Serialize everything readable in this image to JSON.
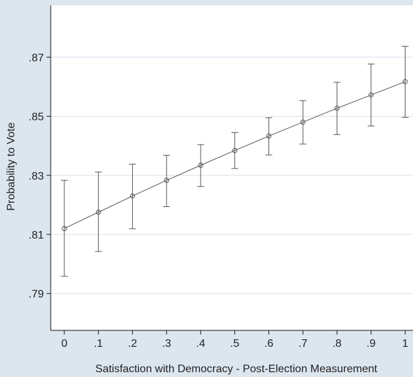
{
  "chart_data": {
    "type": "line",
    "title": "",
    "xlabel": "Satisfaction with Democracy - Post-Election Measurement",
    "ylabel": "Probability to Vote",
    "x": [
      0,
      0.1,
      0.2,
      0.3,
      0.4,
      0.5,
      0.6,
      0.7,
      0.8,
      0.9,
      1.0
    ],
    "x_tick_labels": [
      "0",
      ".1",
      ".2",
      ".3",
      ".4",
      ".5",
      ".6",
      ".7",
      ".8",
      ".9",
      "1"
    ],
    "y_ticks": [
      0.79,
      0.81,
      0.83,
      0.85,
      0.87
    ],
    "y_tick_labels": [
      ".79",
      ".81",
      ".83",
      ".85",
      ".87"
    ],
    "xlim": [
      -0.04,
      1.025
    ],
    "ylim": [
      0.7775,
      0.8875
    ],
    "grid": true,
    "series": [
      {
        "values": [
          0.812,
          0.8175,
          0.823,
          0.8283,
          0.8334,
          0.8384,
          0.8433,
          0.848,
          0.8527,
          0.8572,
          0.8617
        ],
        "ci_lower": [
          0.7958,
          0.8042,
          0.8119,
          0.8194,
          0.8262,
          0.8323,
          0.8369,
          0.8406,
          0.8438,
          0.8467,
          0.8496
        ],
        "ci_upper": [
          0.8283,
          0.8311,
          0.8338,
          0.8368,
          0.8404,
          0.8445,
          0.8495,
          0.8553,
          0.8615,
          0.8677,
          0.8737
        ]
      }
    ],
    "colors": {
      "background": "#dce6ef",
      "plot_area": "#ffffff",
      "grid": "#dce6ef",
      "line": "#555555",
      "axis": "#111111"
    }
  }
}
